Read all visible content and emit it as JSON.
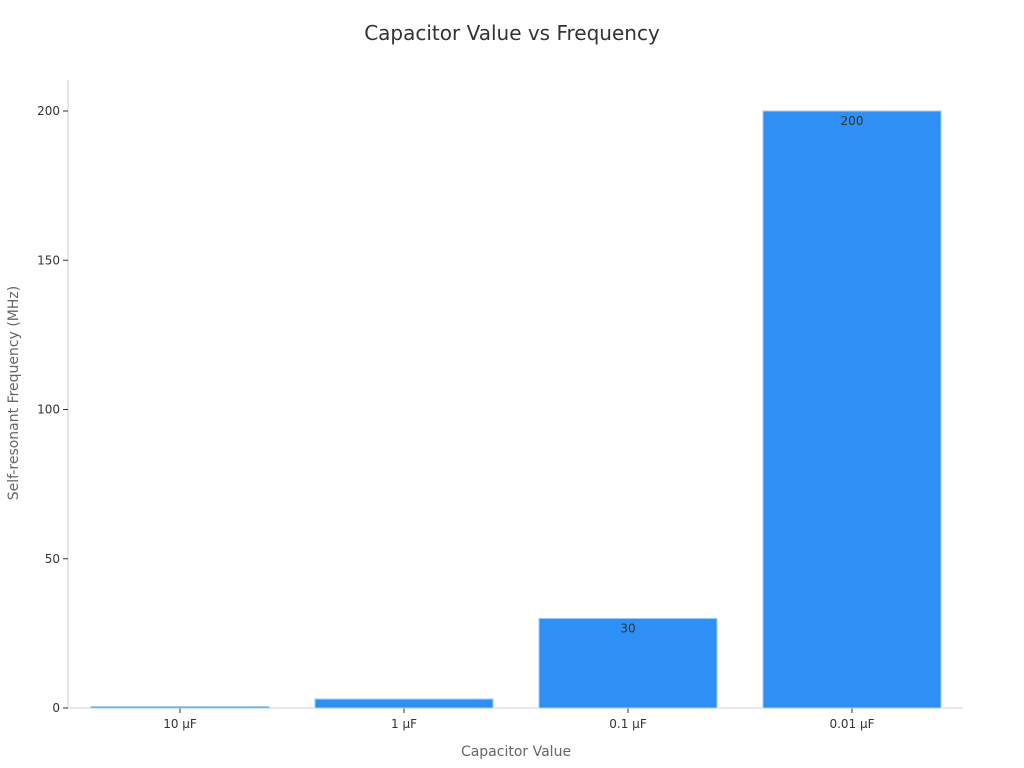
{
  "chart_data": {
    "type": "bar",
    "title": "Capacitor Value vs Frequency",
    "xlabel": "Capacitor Value",
    "ylabel": "Self-resonant Frequency (MHz)",
    "categories": [
      "10 µF",
      "1 µF",
      "0.1 µF",
      "0.01 µF"
    ],
    "values": [
      0.5,
      3,
      30,
      200
    ],
    "data_labels": [
      "",
      "",
      "30",
      "200"
    ],
    "yticks": [
      0,
      50,
      100,
      150,
      200
    ],
    "ylim": [
      0,
      210
    ],
    "grid": false,
    "legend": "none",
    "colors": {
      "bar": "#2e90f7",
      "bar_edge": "#a7ccf1",
      "axis": "#cccccc",
      "tick": "#333333"
    }
  }
}
